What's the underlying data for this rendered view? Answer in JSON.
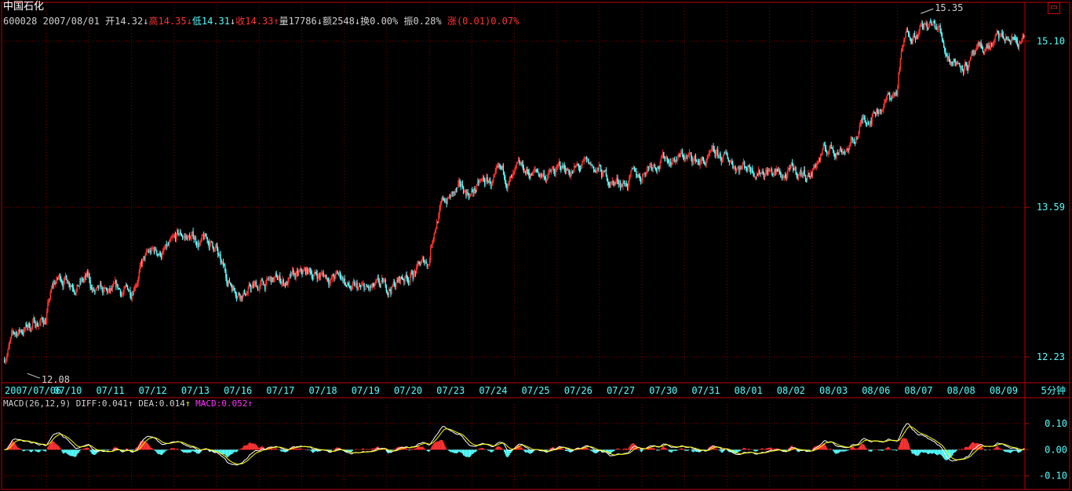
{
  "header": {
    "stock_name": "中国石化",
    "corner_icon": "window-restore-icon"
  },
  "quote": {
    "code": "600028",
    "date": "2007/08/01",
    "open_label": "开",
    "open_value": "14.32",
    "high_label": "高",
    "high_value": "14.35",
    "low_label": "低",
    "low_value": "14.31",
    "close_label": "收",
    "close_value": "14.33",
    "volume_label": "量",
    "volume_value": "17786",
    "amount_label": "额",
    "amount_value": "2548",
    "turnover_label": "换",
    "turnover_value": "0.00%",
    "amplitude_label": "振",
    "amplitude_value": "0.28%",
    "change_label": "涨",
    "change_value": "(0.01)0.07%"
  },
  "macd_header": {
    "name": "MACD(26,12,9)",
    "diff_label": "DIFF:",
    "diff_value": "0.041",
    "dea_label": "DEA:",
    "dea_value": "0.014",
    "macd_label": "MACD:",
    "macd_value": "0.052"
  },
  "colors": {
    "background": "#000000",
    "frame": "#c00000",
    "grid": "#800000",
    "up": "#ff3232",
    "down": "#54ffff",
    "text": "#c0c0c0",
    "diff_line": "#ffffff",
    "dea_line": "#ffff00"
  },
  "chart_data": [
    {
      "type": "candlestick",
      "title": "",
      "period": "5分钟",
      "x_tick_labels": [
        "2007/07/06",
        "07/10",
        "07/11",
        "07/12",
        "07/13",
        "07/16",
        "07/17",
        "07/18",
        "07/19",
        "07/20",
        "07/23",
        "07/24",
        "07/25",
        "07/26",
        "07/27",
        "07/30",
        "07/31",
        "08/01",
        "08/02",
        "08/03",
        "08/06",
        "08/07",
        "08/08",
        "08/09"
      ],
      "y_tick_labels": [
        "15.10",
        "13.59",
        "12.23"
      ],
      "y_ticks": [
        15.1,
        13.59,
        12.23
      ],
      "ylim": [
        12.01,
        15.43
      ],
      "annotations": [
        {
          "text": "15.35",
          "price": 15.35,
          "day": "08/07"
        },
        {
          "text": "12.08",
          "price": 12.08,
          "day": "2007/07/06"
        }
      ],
      "daily_close_path": [
        12.45,
        13.0,
        12.7,
        13.15,
        13.35,
        12.85,
        12.9,
        13.0,
        12.78,
        12.9,
        13.7,
        13.8,
        13.88,
        13.95,
        13.8,
        14.07,
        14.0,
        14.0,
        13.85,
        14.1,
        14.42,
        15.3,
        14.9,
        15.1
      ],
      "grid": true
    },
    {
      "type": "line",
      "title": "MACD(26,12,9)",
      "y_tick_labels": [
        "0.10",
        "0.00",
        "-0.10"
      ],
      "y_ticks": [
        0.1,
        0.0,
        -0.1
      ],
      "ylim": [
        -0.14,
        0.145
      ],
      "series": [
        {
          "name": "DIFF",
          "last": 0.041
        },
        {
          "name": "DEA",
          "last": 0.014
        },
        {
          "name": "MACD",
          "last": 0.052
        }
      ],
      "grid": true
    }
  ]
}
